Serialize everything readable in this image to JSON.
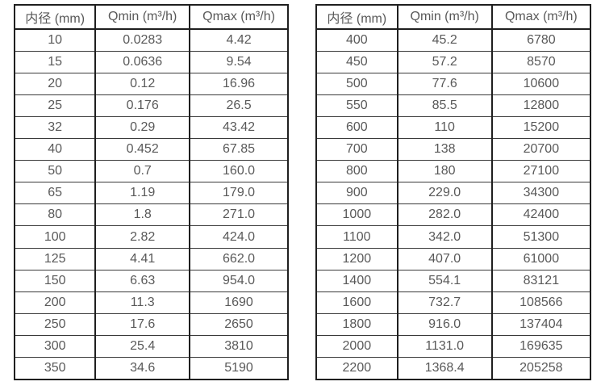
{
  "colors": {
    "background": "#ffffff",
    "border": "#1f1f1f",
    "text": "#595959"
  },
  "tables": [
    {
      "name": "flow-spec-small-diameters",
      "headers": [
        "内径 (mm)",
        "Qmin (m³/h)",
        "Qmax (m³/h)"
      ],
      "rows": [
        [
          "10",
          "0.0283",
          "4.42"
        ],
        [
          "15",
          "0.0636",
          "9.54"
        ],
        [
          "20",
          "0.12",
          "16.96"
        ],
        [
          "25",
          "0.176",
          "26.5"
        ],
        [
          "32",
          "0.29",
          "43.42"
        ],
        [
          "40",
          "0.452",
          "67.85"
        ],
        [
          "50",
          "0.7",
          "160.0"
        ],
        [
          "65",
          "1.19",
          "179.0"
        ],
        [
          "80",
          "1.8",
          "271.0"
        ],
        [
          "100",
          "2.82",
          "424.0"
        ],
        [
          "125",
          "4.41",
          "662.0"
        ],
        [
          "150",
          "6.63",
          "954.0"
        ],
        [
          "200",
          "11.3",
          "1690"
        ],
        [
          "250",
          "17.6",
          "2650"
        ],
        [
          "300",
          "25.4",
          "3810"
        ],
        [
          "350",
          "34.6",
          "5190"
        ]
      ]
    },
    {
      "name": "flow-spec-large-diameters",
      "headers": [
        "内径 (mm)",
        "Qmin (m³/h)",
        "Qmax (m³/h)"
      ],
      "rows": [
        [
          "400",
          "45.2",
          "6780"
        ],
        [
          "450",
          "57.2",
          "8570"
        ],
        [
          "500",
          "77.6",
          "10600"
        ],
        [
          "550",
          "85.5",
          "12800"
        ],
        [
          "600",
          "110",
          "15200"
        ],
        [
          "700",
          "138",
          "20700"
        ],
        [
          "800",
          "180",
          "27100"
        ],
        [
          "900",
          "229.0",
          "34300"
        ],
        [
          "1000",
          "282.0",
          "42400"
        ],
        [
          "1100",
          "342.0",
          "51300"
        ],
        [
          "1200",
          "407.0",
          "61000"
        ],
        [
          "1400",
          "554.1",
          "83121"
        ],
        [
          "1600",
          "732.7",
          "108566"
        ],
        [
          "1800",
          "916.0",
          "137404"
        ],
        [
          "2000",
          "1131.0",
          "169635"
        ],
        [
          "2200",
          "1368.4",
          "205258"
        ]
      ]
    }
  ]
}
